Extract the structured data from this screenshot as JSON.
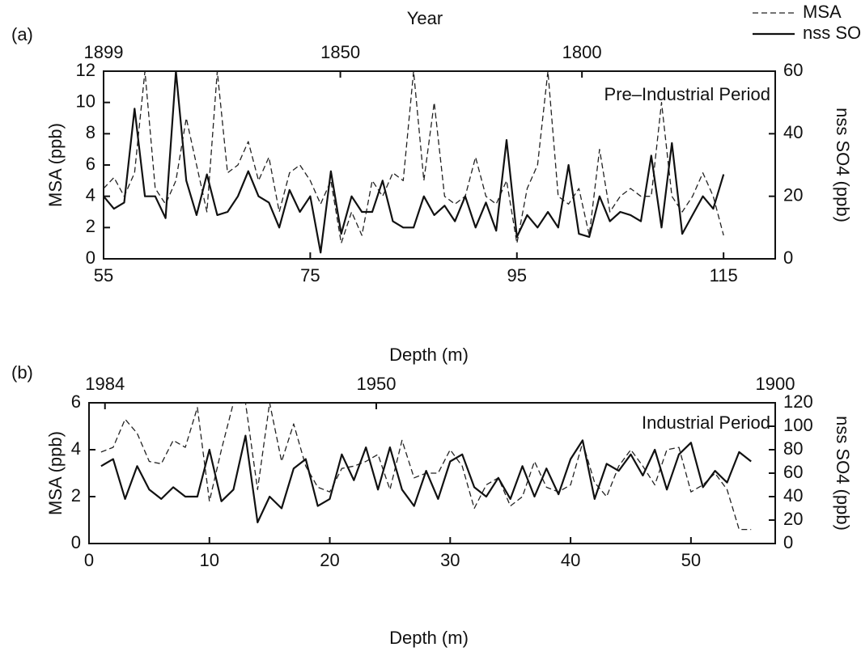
{
  "chart_data": [
    {
      "type": "line",
      "label": "(a)",
      "annotation": "Pre–Industrial Period",
      "xlabel": "Depth (m)",
      "ylabel": "MSA (ppb)",
      "y2label": "nss SO4 (ppb)",
      "x2label": "Year",
      "xlim": [
        55,
        120
      ],
      "xticks": [
        55,
        75,
        95,
        115
      ],
      "x2lim": [
        1899,
        1760
      ],
      "x2ticks": [
        1899,
        1850,
        1800
      ],
      "ylim": [
        0,
        12
      ],
      "yticks": [
        0,
        2,
        4,
        6,
        8,
        10,
        12
      ],
      "y2lim": [
        0,
        60
      ],
      "y2ticks": [
        0,
        20,
        40,
        60
      ],
      "x": [
        55,
        56,
        57,
        58,
        59,
        60,
        61,
        62,
        63,
        64,
        65,
        66,
        67,
        68,
        69,
        70,
        71,
        72,
        73,
        74,
        75,
        76,
        77,
        78,
        79,
        80,
        81,
        82,
        83,
        84,
        85,
        86,
        87,
        88,
        89,
        90,
        91,
        92,
        93,
        94,
        95,
        96,
        97,
        98,
        99,
        100,
        101,
        102,
        103,
        104,
        105,
        106,
        107,
        108,
        109,
        110,
        111,
        112,
        113,
        114,
        115
      ],
      "series": [
        {
          "name": "MSA",
          "color": "#222",
          "dash": true,
          "axis": "y",
          "values": [
            4.5,
            5.2,
            4,
            5.5,
            12,
            4.5,
            3.5,
            5,
            9,
            6,
            3,
            12,
            5.5,
            6,
            7.5,
            5,
            6.5,
            3,
            5.5,
            6,
            5,
            3.5,
            5,
            1,
            3,
            1.5,
            5,
            4,
            5.5,
            5,
            12,
            5,
            10,
            4,
            3.5,
            4,
            6.5,
            4,
            3.5,
            5,
            1,
            4.5,
            6,
            12,
            4,
            3.5,
            4.5,
            1.5,
            7,
            3,
            4,
            4.5,
            4,
            4,
            10,
            4,
            3,
            4,
            5.5,
            4,
            1.5
          ]
        },
        {
          "name": "nss SO4",
          "color": "#111",
          "dash": false,
          "axis": "y2",
          "values": [
            20,
            16,
            18,
            48,
            20,
            20,
            13,
            60,
            25,
            14,
            27,
            14,
            15,
            20,
            28,
            20,
            18,
            10,
            22,
            15,
            20,
            2,
            28,
            8,
            20,
            15,
            15,
            25,
            12,
            10,
            10,
            20,
            14,
            17,
            12,
            20,
            10,
            18,
            9,
            38,
            7,
            14,
            10,
            15,
            10,
            30,
            8,
            7,
            20,
            12,
            15,
            14,
            12,
            33,
            10,
            37,
            8,
            14,
            20,
            16,
            27
          ]
        }
      ]
    },
    {
      "type": "line",
      "label": "(b)",
      "annotation": "Industrial Period",
      "xlabel": "Depth (m)",
      "ylabel": "MSA (ppb)",
      "y2label": "nss SO4 (ppb)",
      "xlim": [
        0,
        57
      ],
      "xticks": [
        0,
        10,
        20,
        30,
        40,
        50
      ],
      "x2lim": [
        1986,
        1900
      ],
      "x2ticks": [
        1984,
        1950,
        1900
      ],
      "ylim": [
        0,
        6
      ],
      "yticks": [
        0,
        2,
        4,
        6
      ],
      "y2lim": [
        0,
        120
      ],
      "y2ticks": [
        0,
        20,
        40,
        60,
        80,
        100,
        120
      ],
      "x": [
        1,
        2,
        3,
        4,
        5,
        6,
        7,
        8,
        9,
        10,
        11,
        12,
        13,
        14,
        15,
        16,
        17,
        18,
        19,
        20,
        21,
        22,
        23,
        24,
        25,
        26,
        27,
        28,
        29,
        30,
        31,
        32,
        33,
        34,
        35,
        36,
        37,
        38,
        39,
        40,
        41,
        42,
        43,
        44,
        45,
        46,
        47,
        48,
        49,
        50,
        51,
        52,
        53,
        54,
        55
      ],
      "series": [
        {
          "color": "#222",
          "dash": true,
          "axis": "y",
          "values": [
            3.9,
            4.1,
            5.3,
            4.7,
            3.5,
            3.4,
            4.4,
            4.1,
            5.8,
            1.8,
            4,
            6,
            6,
            2.3,
            6,
            3.5,
            5.1,
            3.3,
            2.4,
            2.2,
            3.2,
            3.3,
            3.5,
            3.8,
            2.3,
            4.4,
            2.8,
            3,
            3,
            4,
            3.3,
            1.5,
            2.5,
            2.8,
            1.6,
            2,
            3.5,
            2.4,
            2.2,
            2.5,
            4.3,
            2.6,
            2,
            3.3,
            4,
            3.3,
            2.5,
            4,
            4.1,
            2.2,
            2.5,
            3,
            2.3,
            0.6,
            0.6
          ]
        },
        {
          "color": "#111",
          "dash": false,
          "axis": "y2",
          "values": [
            66,
            72,
            38,
            66,
            46,
            38,
            48,
            40,
            40,
            80,
            36,
            46,
            92,
            18,
            40,
            30,
            64,
            72,
            32,
            38,
            76,
            54,
            82,
            46,
            82,
            46,
            32,
            62,
            38,
            70,
            76,
            48,
            40,
            56,
            38,
            66,
            40,
            64,
            42,
            72,
            88,
            38,
            68,
            62,
            76,
            58,
            80,
            46,
            76,
            86,
            48,
            62,
            52,
            78,
            70
          ]
        }
      ]
    }
  ]
}
